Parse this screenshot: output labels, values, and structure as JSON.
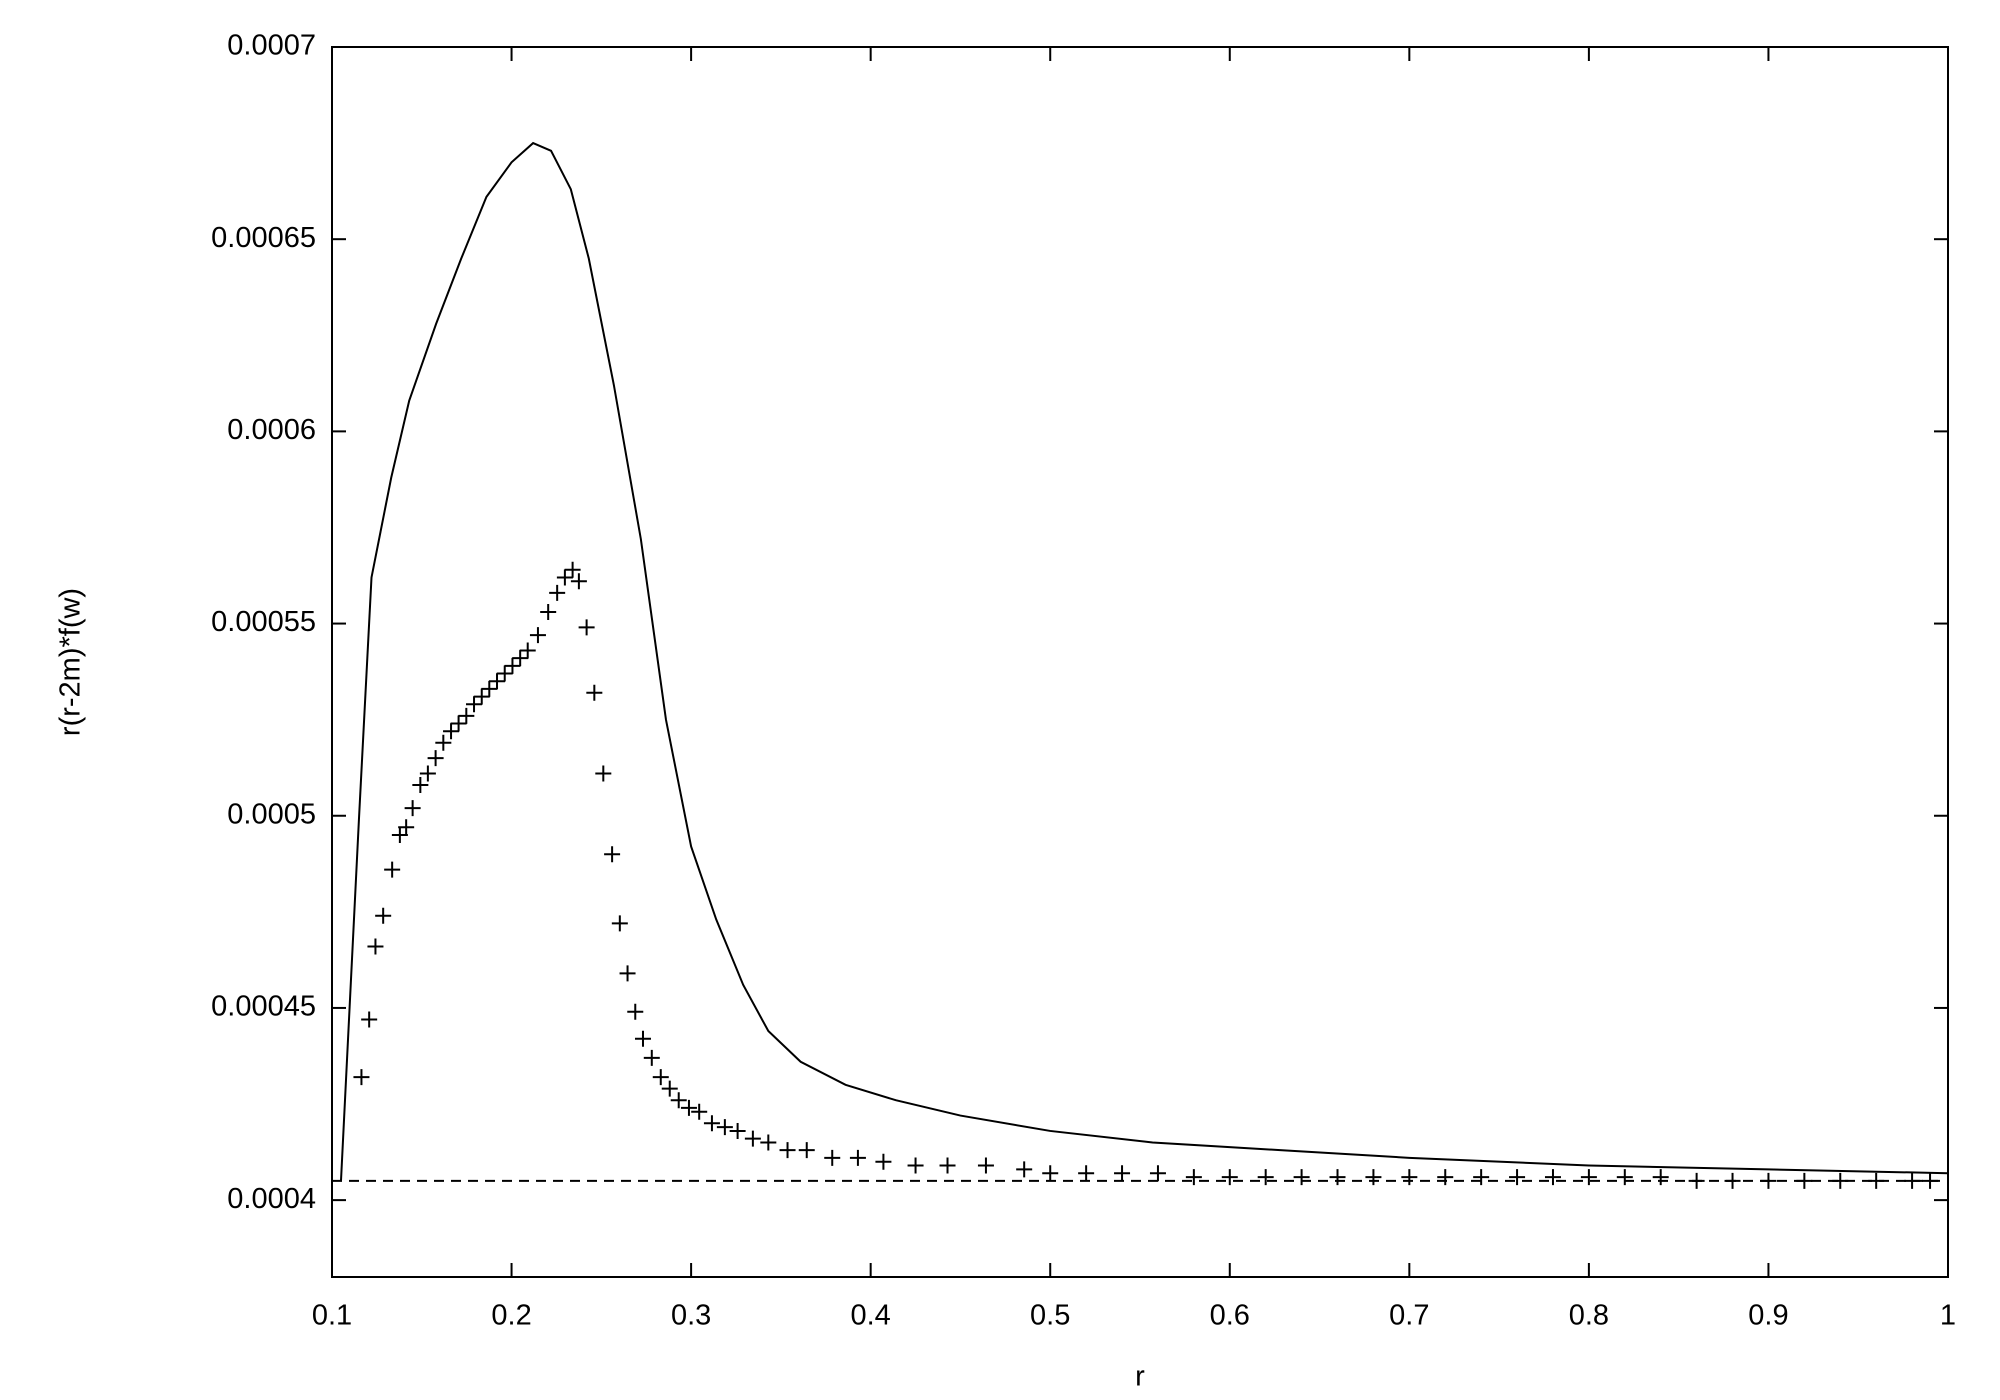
{
  "chart_data": {
    "type": "line",
    "xlabel": "r",
    "ylabel": "r(r-2m)*f(w)",
    "xlim": [
      0.1,
      1
    ],
    "xticks": [
      0.1,
      0.2,
      0.3,
      0.4,
      0.5,
      0.6,
      0.7,
      0.8,
      0.9,
      1
    ],
    "ylim": [
      0.00038,
      0.0007
    ],
    "yticks": [
      0.0004,
      0.00045,
      0.0005,
      0.00055,
      0.0006,
      0.00065,
      0.0007
    ],
    "grid": false,
    "series": [
      {
        "style": "line",
        "color": "#000000",
        "x": [
          0.105,
          0.115,
          0.122,
          0.133,
          0.143,
          0.158,
          0.172,
          0.186,
          0.2,
          0.212,
          0.222,
          0.233,
          0.243,
          0.257,
          0.272,
          0.286,
          0.3,
          0.314,
          0.329,
          0.343,
          0.361,
          0.386,
          0.414,
          0.45,
          0.5,
          0.557,
          0.628,
          0.7,
          0.8,
          0.9,
          1
        ],
        "values": [
          0.000405,
          0.000499,
          0.000562,
          0.000588,
          0.000608,
          0.000628,
          0.000645,
          0.000661,
          0.00067,
          0.000675,
          0.000673,
          0.000663,
          0.000645,
          0.000612,
          0.000572,
          0.000525,
          0.000492,
          0.000473,
          0.000456,
          0.000444,
          0.000436,
          0.00043,
          0.000426,
          0.000422,
          0.000418,
          0.000415,
          0.000413,
          0.000411,
          0.000409,
          0.000408,
          0.000407
        ]
      },
      {
        "style": "points",
        "color": "#000000",
        "x": [
          0.1164,
          0.1207,
          0.1242,
          0.1285,
          0.1335,
          0.1378,
          0.1413,
          0.1449,
          0.1492,
          0.1534,
          0.1577,
          0.162,
          0.1663,
          0.1705,
          0.1748,
          0.1791,
          0.1834,
          0.1876,
          0.1919,
          0.1962,
          0.2005,
          0.2048,
          0.209,
          0.2147,
          0.2204,
          0.2254,
          0.2297,
          0.234,
          0.2375,
          0.2418,
          0.2461,
          0.2511,
          0.256,
          0.2603,
          0.2646,
          0.2689,
          0.2732,
          0.2781,
          0.2831,
          0.2881,
          0.2931,
          0.2988,
          0.3045,
          0.3116,
          0.3188,
          0.3259,
          0.3344,
          0.343,
          0.3537,
          0.3644,
          0.3786,
          0.3929,
          0.4071,
          0.425,
          0.4428,
          0.4642,
          0.4855,
          0.5,
          0.52,
          0.54,
          0.56,
          0.58,
          0.6,
          0.62,
          0.64,
          0.66,
          0.68,
          0.7,
          0.72,
          0.74,
          0.76,
          0.78,
          0.8,
          0.82,
          0.84,
          0.86,
          0.88,
          0.9,
          0.92,
          0.94,
          0.96,
          0.98,
          0.99
        ],
        "values": [
          0.000432,
          0.000447,
          0.000466,
          0.000474,
          0.000486,
          0.000495,
          0.000497,
          0.000502,
          0.000508,
          0.000511,
          0.000515,
          0.000519,
          0.000522,
          0.000524,
          0.000526,
          0.000529,
          0.000531,
          0.000533,
          0.000535,
          0.000537,
          0.000539,
          0.000541,
          0.000543,
          0.000547,
          0.000553,
          0.000558,
          0.000562,
          0.000564,
          0.000561,
          0.000549,
          0.000532,
          0.000511,
          0.00049,
          0.000472,
          0.000459,
          0.000449,
          0.000442,
          0.000437,
          0.000432,
          0.000429,
          0.000426,
          0.000424,
          0.000423,
          0.00042,
          0.000419,
          0.000418,
          0.000416,
          0.000415,
          0.000413,
          0.000413,
          0.000411,
          0.000411,
          0.00041,
          0.000409,
          0.000409,
          0.000409,
          0.000408,
          0.000407,
          0.000407,
          0.000407,
          0.000407,
          0.000406,
          0.000406,
          0.000406,
          0.000406,
          0.000406,
          0.000406,
          0.000406,
          0.000406,
          0.000406,
          0.000406,
          0.000406,
          0.000406,
          0.000406,
          0.000406,
          0.000405,
          0.000405,
          0.000405,
          0.000405,
          0.000405,
          0.000405,
          0.000405,
          0.000405
        ]
      },
      {
        "style": "dashed",
        "color": "#000000",
        "x": [
          0.1,
          1
        ],
        "values": [
          0.000405,
          0.000405
        ]
      }
    ]
  }
}
